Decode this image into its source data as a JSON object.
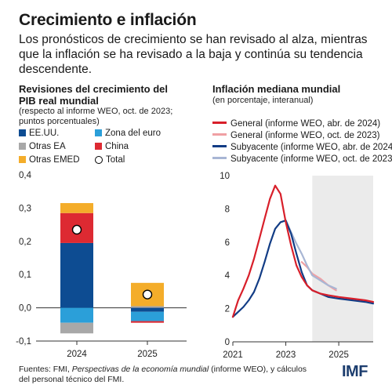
{
  "header": {
    "title": "Crecimiento e inflación",
    "subtitle": "Los pronósticos de crecimiento se han revisado al alza, mientras que la inflación se ha revisado a la baja y continúa su tendencia descendente."
  },
  "left_panel": {
    "title": "Revisiones del crecimiento del PIB real mundial",
    "subtitle": "(respecto al informe WEO, oct. de 2023; puntos porcentuales)",
    "legend": [
      {
        "label": "EE.UU.",
        "color": "#0d4c92",
        "kind": "box"
      },
      {
        "label": "Zona del euro",
        "color": "#2b9fd9",
        "kind": "box"
      },
      {
        "label": "Otras EA",
        "color": "#a8a8a8",
        "kind": "box"
      },
      {
        "label": "China",
        "color": "#dd2a32",
        "kind": "box"
      },
      {
        "label": "Otras EMED",
        "color": "#f4ad2a",
        "kind": "box"
      },
      {
        "label": "Total",
        "color": "#ffffff",
        "kind": "dot"
      }
    ]
  },
  "right_panel": {
    "title": "Inflación mediana mundial",
    "subtitle": "(en porcentaje, interanual)",
    "legend": [
      {
        "label": "General (informe WEO, abr. de 2024)",
        "color": "#d81f2a"
      },
      {
        "label": "General (informe WEO, oct. de 2023)",
        "color": "#f0a0a4"
      },
      {
        "label": "Subyacente (informe WEO, abr. de 2024)",
        "color": "#123c85"
      },
      {
        "label": "Subyacente (informe WEO, oct. de 2023)",
        "color": "#a8b6d4"
      }
    ]
  },
  "chart_data": [
    {
      "type": "bar",
      "stacked": true,
      "title": "Revisiones del crecimiento del PIB real mundial",
      "subtitle": "(respecto al informe WEO, oct. de 2023; puntos porcentuales)",
      "categories": [
        "2024",
        "2025"
      ],
      "series": [
        {
          "name": "EE.UU.",
          "color": "#0d4c92",
          "values": [
            0.195,
            -0.012
          ]
        },
        {
          "name": "Zona del euro",
          "color": "#2b9fd9",
          "values": [
            -0.045,
            -0.028
          ]
        },
        {
          "name": "Otras EA",
          "color": "#a8a8a8",
          "values": [
            -0.032,
            0.005
          ]
        },
        {
          "name": "China",
          "color": "#dd2a32",
          "values": [
            0.09,
            -0.005
          ]
        },
        {
          "name": "Otras EMED",
          "color": "#f4ad2a",
          "values": [
            0.03,
            0.07
          ]
        }
      ],
      "total": {
        "name": "Total",
        "values": [
          0.235,
          0.04
        ]
      },
      "ylim": [
        -0.1,
        0.4
      ],
      "yticks": [
        -0.1,
        0.0,
        0.1,
        0.2,
        0.3,
        0.4
      ],
      "ytick_labels": [
        "-0,1",
        "0,0",
        "0,1",
        "0,2",
        "0,3",
        "0,4"
      ]
    },
    {
      "type": "line",
      "title": "Inflación mediana mundial",
      "subtitle": "(en porcentaje, interanual)",
      "xlim": [
        2021,
        2026.3
      ],
      "ylim": [
        0,
        10
      ],
      "yticks": [
        0,
        2,
        4,
        6,
        8,
        10
      ],
      "xticks": [
        2021,
        2023,
        2025
      ],
      "forecast_shade_start": 2024,
      "series": [
        {
          "name": "General (informe WEO, abr. de 2024)",
          "color": "#d81f2a",
          "x": [
            2021.0,
            2021.2,
            2021.4,
            2021.6,
            2021.8,
            2022.0,
            2022.2,
            2022.4,
            2022.6,
            2022.8,
            2023.0,
            2023.2,
            2023.4,
            2023.6,
            2023.8,
            2024.0,
            2024.3,
            2024.6,
            2025.0,
            2025.5,
            2026.0,
            2026.3
          ],
          "y": [
            1.5,
            2.5,
            3.2,
            4.0,
            5.0,
            6.2,
            7.4,
            8.6,
            9.4,
            8.9,
            7.2,
            5.8,
            4.6,
            3.9,
            3.4,
            3.1,
            2.9,
            2.8,
            2.7,
            2.6,
            2.5,
            2.4
          ]
        },
        {
          "name": "General (informe WEO, oct. de 2023)",
          "color": "#f0a0a4",
          "x": [
            2023.6,
            2023.8,
            2024.0,
            2024.3,
            2024.6,
            2024.9
          ],
          "y": [
            4.8,
            4.5,
            4.1,
            3.8,
            3.4,
            3.1
          ]
        },
        {
          "name": "Subyacente (informe WEO, abr. de 2024)",
          "color": "#123c85",
          "x": [
            2021.0,
            2021.2,
            2021.4,
            2021.6,
            2021.8,
            2022.0,
            2022.2,
            2022.4,
            2022.6,
            2022.8,
            2023.0,
            2023.2,
            2023.4,
            2023.6,
            2023.8,
            2024.0,
            2024.3,
            2024.6,
            2025.0,
            2025.5,
            2026.0,
            2026.3
          ],
          "y": [
            1.5,
            1.8,
            2.1,
            2.5,
            3.0,
            3.8,
            4.8,
            5.9,
            6.8,
            7.2,
            7.3,
            6.5,
            5.3,
            4.2,
            3.4,
            3.1,
            2.9,
            2.7,
            2.6,
            2.5,
            2.4,
            2.3
          ]
        },
        {
          "name": "Subyacente (informe WEO, oct. de 2023)",
          "color": "#a8b6d4",
          "x": [
            2023.0,
            2023.2,
            2023.4,
            2023.6,
            2023.8,
            2024.0,
            2024.3,
            2024.6,
            2024.9
          ],
          "y": [
            7.3,
            6.6,
            5.9,
            5.3,
            4.6,
            4.0,
            3.7,
            3.4,
            3.2
          ]
        }
      ]
    }
  ],
  "footer": {
    "prefix": "Fuentes: FMI, ",
    "italic": "Perspectivas de la economía mundial",
    "suffix": " (informe WEO), y cálculos del personal técnico del FMI."
  },
  "logo": "IMF"
}
